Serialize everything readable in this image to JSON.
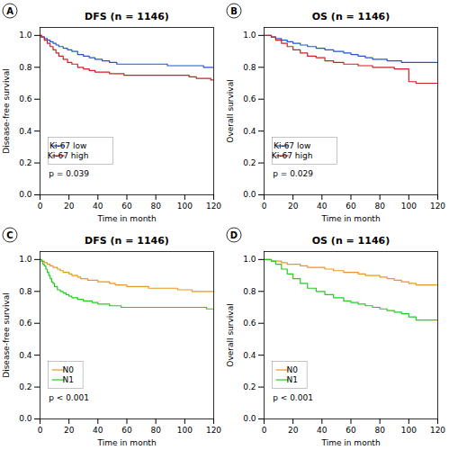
{
  "chart_data": [
    {
      "type": "step",
      "panel_label": "A",
      "title": "DFS (n = 1146)",
      "xlabel": "Time in month",
      "ylabel": "Disease-free survival",
      "annotations": [
        "p = 0.039"
      ],
      "legend": "lower left",
      "grid": false,
      "x": [
        0,
        1,
        3,
        5,
        7,
        9,
        11,
        13,
        16,
        19,
        22,
        26,
        30,
        34,
        38,
        43,
        48,
        53,
        58,
        63,
        68,
        73,
        78,
        83,
        88,
        93,
        98,
        103,
        108,
        113,
        118,
        120
      ],
      "series": [
        {
          "name": "Ki-67 low",
          "color": "#2255cc",
          "values": [
            1.0,
            0.99,
            0.98,
            0.97,
            0.96,
            0.95,
            0.94,
            0.93,
            0.92,
            0.91,
            0.9,
            0.88,
            0.87,
            0.86,
            0.85,
            0.84,
            0.83,
            0.82,
            0.82,
            0.82,
            0.82,
            0.82,
            0.82,
            0.82,
            0.81,
            0.81,
            0.81,
            0.81,
            0.81,
            0.8,
            0.8,
            0.8
          ]
        },
        {
          "name": "Ki-67 high",
          "color": "#cc2222",
          "values": [
            1.0,
            0.99,
            0.97,
            0.95,
            0.93,
            0.91,
            0.89,
            0.87,
            0.85,
            0.83,
            0.82,
            0.8,
            0.79,
            0.78,
            0.77,
            0.77,
            0.76,
            0.76,
            0.75,
            0.75,
            0.75,
            0.75,
            0.75,
            0.75,
            0.75,
            0.75,
            0.75,
            0.74,
            0.73,
            0.73,
            0.72,
            0.72
          ]
        }
      ],
      "xlim": [
        0,
        120
      ],
      "xticks": [
        0,
        20,
        40,
        60,
        80,
        100,
        120
      ],
      "ylim": [
        0.0,
        1.05
      ],
      "yticks": [
        {
          "value": 0.0,
          "label": "0.0"
        },
        0.2,
        0.4,
        0.6,
        0.8,
        {
          "value": 1.0,
          "label": "1.0"
        }
      ]
    },
    {
      "type": "step",
      "panel_label": "B",
      "title": "OS (n = 1146)",
      "xlabel": "Time in month",
      "ylabel": "Overall survival",
      "annotations": [
        "p = 0.029"
      ],
      "legend": "lower left",
      "grid": false,
      "x": [
        0,
        2,
        5,
        8,
        12,
        16,
        20,
        25,
        30,
        36,
        42,
        48,
        55,
        60,
        65,
        70,
        75,
        80,
        85,
        90,
        95,
        100,
        105,
        110,
        115,
        120
      ],
      "series": [
        {
          "name": "Ki-67 low",
          "color": "#2255cc",
          "values": [
            1.0,
            1.0,
            0.99,
            0.98,
            0.97,
            0.96,
            0.95,
            0.94,
            0.93,
            0.92,
            0.91,
            0.9,
            0.89,
            0.88,
            0.87,
            0.86,
            0.85,
            0.85,
            0.84,
            0.84,
            0.83,
            0.83,
            0.83,
            0.83,
            0.83,
            0.83
          ]
        },
        {
          "name": "Ki-67 high",
          "color": "#cc2222",
          "values": [
            1.0,
            1.0,
            0.99,
            0.97,
            0.95,
            0.93,
            0.91,
            0.89,
            0.87,
            0.86,
            0.84,
            0.83,
            0.82,
            0.82,
            0.81,
            0.81,
            0.8,
            0.8,
            0.8,
            0.79,
            0.79,
            0.71,
            0.7,
            0.7,
            0.7,
            0.7
          ]
        }
      ],
      "xlim": [
        0,
        120
      ],
      "xticks": [
        0,
        20,
        40,
        60,
        80,
        100,
        120
      ],
      "ylim": [
        0.0,
        1.05
      ],
      "yticks": [
        {
          "value": 0.0,
          "label": "0.0"
        },
        0.2,
        0.4,
        0.6,
        0.8,
        {
          "value": 1.0,
          "label": "1.0"
        }
      ]
    },
    {
      "type": "step",
      "panel_label": "C",
      "title": "DFS (n = 1146)",
      "xlabel": "Time in month",
      "ylabel": "Disease-free survival",
      "annotations": [
        "p < 0.001"
      ],
      "legend": "lower left",
      "grid": false,
      "x": [
        0,
        1,
        2,
        3,
        4,
        5,
        6,
        7,
        8,
        9,
        10,
        12,
        14,
        16,
        18,
        20,
        22,
        24,
        26,
        28,
        30,
        33,
        36,
        40,
        44,
        48,
        52,
        56,
        60,
        65,
        70,
        75,
        80,
        85,
        90,
        95,
        100,
        105,
        110,
        115,
        120
      ],
      "series": [
        {
          "name": "N0",
          "color": "#e8962a",
          "values": [
            1.0,
            0.99,
            0.99,
            0.98,
            0.98,
            0.97,
            0.97,
            0.96,
            0.96,
            0.95,
            0.95,
            0.94,
            0.93,
            0.92,
            0.92,
            0.91,
            0.9,
            0.9,
            0.89,
            0.88,
            0.88,
            0.87,
            0.87,
            0.86,
            0.86,
            0.85,
            0.84,
            0.84,
            0.83,
            0.83,
            0.83,
            0.82,
            0.82,
            0.82,
            0.82,
            0.81,
            0.81,
            0.8,
            0.8,
            0.8,
            0.8
          ]
        },
        {
          "name": "N1",
          "color": "#22cc22",
          "values": [
            1.0,
            0.99,
            0.97,
            0.96,
            0.94,
            0.92,
            0.9,
            0.88,
            0.86,
            0.85,
            0.83,
            0.81,
            0.8,
            0.79,
            0.78,
            0.77,
            0.76,
            0.76,
            0.75,
            0.75,
            0.74,
            0.74,
            0.73,
            0.72,
            0.72,
            0.71,
            0.71,
            0.7,
            0.7,
            0.7,
            0.7,
            0.7,
            0.7,
            0.7,
            0.7,
            0.7,
            0.7,
            0.7,
            0.7,
            0.69,
            0.69
          ]
        }
      ],
      "xlim": [
        0,
        120
      ],
      "xticks": [
        0,
        20,
        40,
        60,
        80,
        100,
        120
      ],
      "ylim": [
        0.0,
        1.05
      ],
      "yticks": [
        {
          "value": 0.0,
          "label": "0.0"
        },
        0.2,
        0.4,
        0.6,
        0.8,
        {
          "value": 1.0,
          "label": "1.0"
        }
      ]
    },
    {
      "type": "step",
      "panel_label": "D",
      "title": "OS (n = 1146)",
      "xlabel": "Time in month",
      "ylabel": "Overall survival",
      "annotations": [
        "p < 0.001"
      ],
      "legend": "lower left",
      "grid": false,
      "x": [
        0,
        2,
        5,
        8,
        12,
        16,
        20,
        25,
        30,
        36,
        42,
        48,
        55,
        60,
        65,
        70,
        75,
        80,
        85,
        90,
        95,
        100,
        105,
        110,
        115,
        120
      ],
      "series": [
        {
          "name": "N0",
          "color": "#e8962a",
          "values": [
            1.0,
            1.0,
            0.99,
            0.99,
            0.98,
            0.97,
            0.97,
            0.96,
            0.95,
            0.95,
            0.94,
            0.93,
            0.92,
            0.92,
            0.91,
            0.9,
            0.9,
            0.89,
            0.88,
            0.87,
            0.86,
            0.85,
            0.84,
            0.84,
            0.84,
            0.84
          ]
        },
        {
          "name": "N1",
          "color": "#22cc22",
          "values": [
            1.0,
            1.0,
            0.99,
            0.97,
            0.94,
            0.91,
            0.88,
            0.85,
            0.82,
            0.8,
            0.78,
            0.76,
            0.74,
            0.73,
            0.72,
            0.71,
            0.7,
            0.69,
            0.68,
            0.67,
            0.66,
            0.64,
            0.62,
            0.62,
            0.62,
            0.62
          ]
        }
      ],
      "xlim": [
        0,
        120
      ],
      "xticks": [
        0,
        20,
        40,
        60,
        80,
        100,
        120
      ],
      "ylim": [
        0.0,
        1.05
      ],
      "yticks": [
        {
          "value": 0.0,
          "label": "0.0"
        },
        0.2,
        0.4,
        0.6,
        0.8,
        {
          "value": 1.0,
          "label": "1.0"
        }
      ]
    }
  ]
}
